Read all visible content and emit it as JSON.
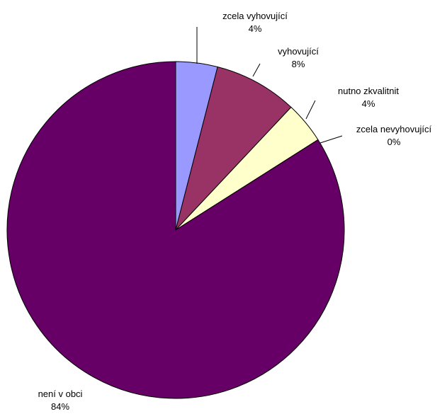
{
  "chart_data": {
    "type": "pie",
    "title": "",
    "start_angle_deg": 0,
    "direction": "clockwise",
    "slices": [
      {
        "label": "zcela vyhovující",
        "value": 4,
        "display": "4%",
        "color": "#9999ff"
      },
      {
        "label": "vyhovující",
        "value": 8,
        "display": "8%",
        "color": "#993366"
      },
      {
        "label": "nutno zkvalitnit",
        "value": 4,
        "display": "4%",
        "color": "#ffffcc"
      },
      {
        "label": "zcela nevyhovující",
        "value": 0,
        "display": "0%",
        "color": "#ccffff"
      },
      {
        "label": "není v obci",
        "value": 84,
        "display": "84%",
        "color": "#660066"
      }
    ]
  }
}
